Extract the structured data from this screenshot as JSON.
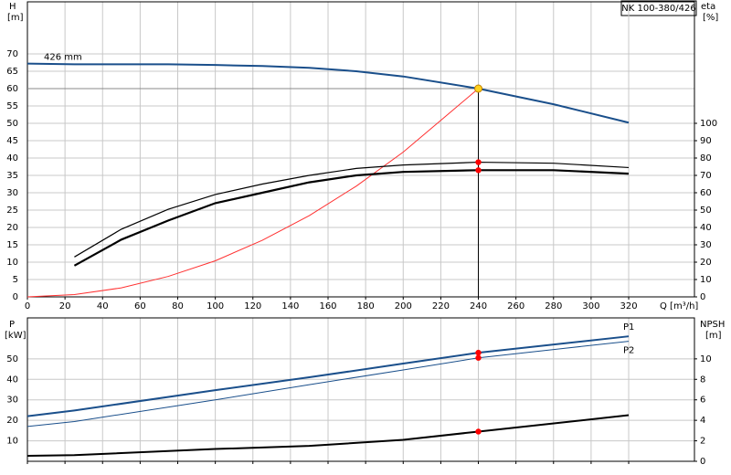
{
  "chart_data": [
    {
      "type": "line",
      "title": "NK 100-380/426",
      "xlabel": "Q [m³/h]",
      "ylabel": "H",
      "yunit": "[m]",
      "y2label": "eta",
      "y2unit": "[%]",
      "x": [
        0,
        25,
        50,
        75,
        100,
        125,
        150,
        175,
        200,
        240,
        280,
        320
      ],
      "xlim": [
        0,
        355
      ],
      "xticks": [
        0,
        20,
        40,
        60,
        80,
        100,
        120,
        140,
        160,
        180,
        200,
        220,
        240,
        260,
        280,
        300,
        320
      ],
      "ylim": [
        0,
        85
      ],
      "yticks": [
        0,
        5,
        10,
        15,
        20,
        25,
        30,
        35,
        40,
        45,
        50,
        55,
        60,
        65,
        70
      ],
      "y2lim": [
        0,
        170
      ],
      "y2ticks": [
        0,
        10,
        20,
        30,
        40,
        50,
        60,
        70,
        80,
        90,
        100
      ],
      "grid": true,
      "operating_point": {
        "x": 240,
        "y": 60
      },
      "series": [
        {
          "name": "426 mm",
          "color": "#1a4f8b",
          "width": 2,
          "values": [
            67.2,
            67,
            67,
            67,
            66.8,
            66.5,
            66,
            65,
            63.5,
            60,
            55.5,
            50.2
          ]
        },
        {
          "color": "#ff3030",
          "width": 1,
          "values": [
            0,
            0.65,
            2.6,
            5.9,
            10.4,
            16.3,
            23.4,
            31.9,
            41.7,
            60,
            null,
            null
          ]
        },
        {
          "color": "#000000",
          "width": 1.2,
          "axis": "y2",
          "marker": 240,
          "values": [
            null,
            23,
            39,
            50.5,
            59,
            65,
            70,
            74,
            76,
            77.6,
            77,
            74.5
          ]
        },
        {
          "color": "#000000",
          "width": 2.2,
          "axis": "y2",
          "marker": 240,
          "values": [
            null,
            18,
            33,
            44,
            54,
            60,
            66,
            70,
            72,
            73,
            73,
            71
          ]
        }
      ]
    },
    {
      "type": "line",
      "ylabel": "P",
      "yunit": "[kW]",
      "y2label": "NPSH",
      "y2unit": "[m]",
      "x": [
        0,
        25,
        100,
        150,
        200,
        240,
        320
      ],
      "xlim": [
        0,
        355
      ],
      "xticks": [
        0,
        20,
        40,
        60,
        80,
        100,
        120,
        140,
        160,
        180,
        200,
        220,
        240,
        260,
        280,
        300,
        320
      ],
      "ylim": [
        0,
        70
      ],
      "yticks": [
        10,
        20,
        30,
        40,
        50
      ],
      "y2lim": [
        0,
        14
      ],
      "y2ticks": [
        0,
        2,
        4,
        6,
        8,
        10
      ],
      "grid": true,
      "series": [
        {
          "name": "P1",
          "color": "#1a4f8b",
          "width": 2,
          "marker": 240,
          "values": [
            22,
            24.8,
            34.7,
            41,
            47.7,
            53,
            61
          ]
        },
        {
          "name": "P2",
          "color": "#1a4f8b",
          "width": 1,
          "marker": 240,
          "values": [
            17,
            19.4,
            30,
            37.4,
            44.6,
            50.5,
            58.6
          ]
        },
        {
          "color": "#000000",
          "width": 2,
          "axis": "y2",
          "marker": 240,
          "values": [
            0.54,
            0.6,
            1.2,
            1.5,
            2.1,
            2.9,
            4.5
          ]
        }
      ]
    }
  ]
}
